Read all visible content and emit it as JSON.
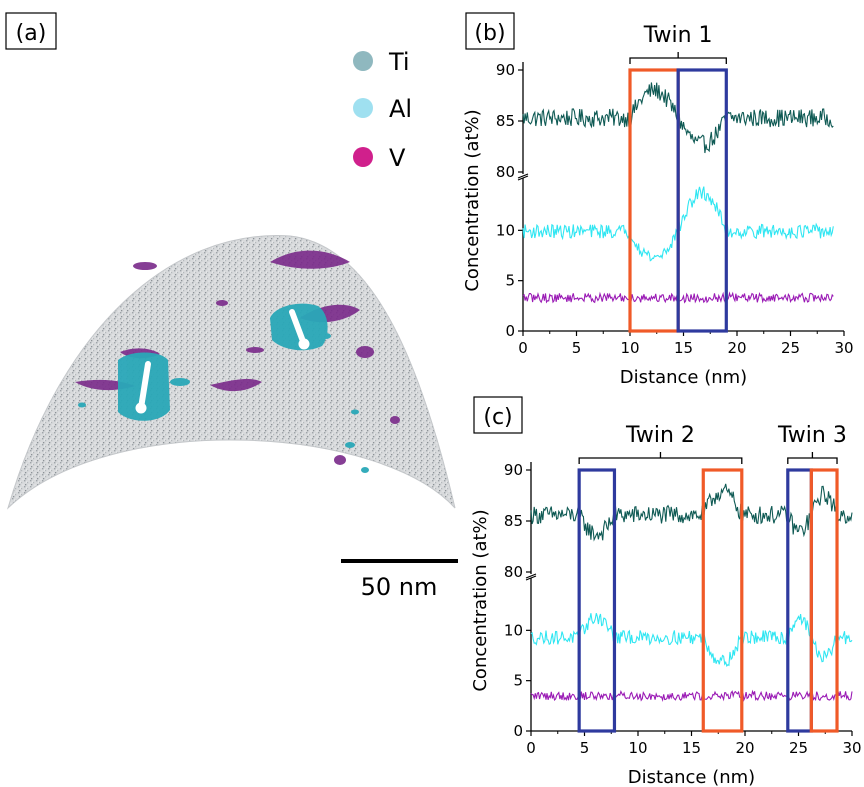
{
  "panels": {
    "a": {
      "label": "(a)"
    },
    "b": {
      "label": "(b)"
    },
    "c": {
      "label": "(c)"
    }
  },
  "legend": [
    {
      "label": "Ti",
      "color": "#8fb8bf"
    },
    {
      "label": "Al",
      "color": "#9fe0f0"
    },
    {
      "label": "V",
      "color": "#d0208c"
    }
  ],
  "scale_bar": {
    "label": "50 nm"
  },
  "colors": {
    "ti": "#0f5a54",
    "al": "#30e6f2",
    "v": "#9a1ab5",
    "orange_box": "#f05a28",
    "blue_box": "#2e3a9e",
    "ti_iso": "#2aa8b8",
    "v_iso": "#7a2a8a"
  },
  "chart_data": [
    {
      "panel": "b",
      "type": "line",
      "xlabel": "Distance (nm)",
      "ylabel": "Concentration (at%)",
      "xlim": [
        0,
        30
      ],
      "xticks": [
        "0",
        "5",
        "10",
        "15",
        "20",
        "25",
        "30"
      ],
      "yticks_upper": [
        "80",
        "85",
        "90"
      ],
      "yticks_lower": [
        "0",
        "5",
        "10"
      ],
      "ylim_upper": [
        80,
        90
      ],
      "ylim_lower": [
        0,
        15
      ],
      "x_end": 29,
      "twins": [
        {
          "label": "Twin 1",
          "x0": 10,
          "x1": 19
        }
      ],
      "boxes": [
        {
          "color": "orange",
          "x0": 10.0,
          "x1": 14.5
        },
        {
          "color": "blue",
          "x0": 14.5,
          "x1": 19.0
        }
      ],
      "series": [
        {
          "element": "ti",
          "baseline": 85.3,
          "noise": 0.9,
          "features": [
            {
              "x0": 10.0,
              "x1": 14.5,
              "delta": 2.7
            },
            {
              "x0": 14.5,
              "x1": 19.0,
              "delta": -2.6
            }
          ]
        },
        {
          "element": "al",
          "baseline": 9.9,
          "noise": 0.7,
          "features": [
            {
              "x0": 10.0,
              "x1": 14.5,
              "delta": -2.6
            },
            {
              "x0": 14.5,
              "x1": 19.0,
              "delta": 3.8
            }
          ]
        },
        {
          "element": "v",
          "baseline": 3.3,
          "noise": 0.45,
          "features": []
        }
      ]
    },
    {
      "panel": "c",
      "type": "line",
      "xlabel": "Distance (nm)",
      "ylabel": "Concentration (at%)",
      "xlim": [
        0,
        30
      ],
      "xticks": [
        "0",
        "5",
        "10",
        "15",
        "20",
        "25",
        "30"
      ],
      "yticks_upper": [
        "80",
        "85",
        "90"
      ],
      "yticks_lower": [
        "0",
        "5",
        "10"
      ],
      "ylim_upper": [
        80,
        90
      ],
      "ylim_lower": [
        0,
        15
      ],
      "x_end": 30,
      "twins": [
        {
          "label": "Twin 2",
          "x0": 4.5,
          "x1": 19.7
        },
        {
          "label": "Twin 3",
          "x0": 24.0,
          "x1": 28.6
        }
      ],
      "boxes": [
        {
          "color": "blue",
          "x0": 4.5,
          "x1": 7.8
        },
        {
          "color": "orange",
          "x0": 16.1,
          "x1": 19.7
        },
        {
          "color": "blue",
          "x0": 24.0,
          "x1": 26.2
        },
        {
          "color": "orange",
          "x0": 26.2,
          "x1": 28.6
        }
      ],
      "series": [
        {
          "element": "ti",
          "baseline": 85.6,
          "noise": 0.9,
          "features": [
            {
              "x0": 4.5,
              "x1": 7.8,
              "delta": -1.9
            },
            {
              "x0": 16.1,
              "x1": 19.7,
              "delta": 2.3
            },
            {
              "x0": 24.0,
              "x1": 26.2,
              "delta": -1.6
            },
            {
              "x0": 26.2,
              "x1": 28.6,
              "delta": 2.0
            }
          ]
        },
        {
          "element": "al",
          "baseline": 9.3,
          "noise": 0.7,
          "features": [
            {
              "x0": 4.5,
              "x1": 7.8,
              "delta": 2.0
            },
            {
              "x0": 16.1,
              "x1": 19.7,
              "delta": -2.4
            },
            {
              "x0": 24.0,
              "x1": 26.2,
              "delta": 2.0
            },
            {
              "x0": 26.2,
              "x1": 28.6,
              "delta": -2.0
            }
          ]
        },
        {
          "element": "v",
          "baseline": 3.5,
          "noise": 0.45,
          "features": []
        }
      ]
    }
  ]
}
